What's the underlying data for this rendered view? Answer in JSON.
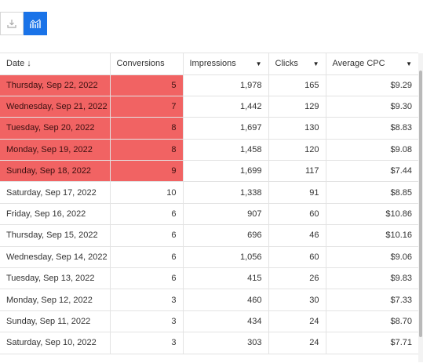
{
  "toolbar": {
    "buttons": [
      {
        "icon": "download-icon",
        "active": false
      },
      {
        "icon": "chart-icon",
        "active": true
      }
    ],
    "accent": "#1a73e8"
  },
  "table": {
    "highlight_color": "#f16363",
    "columns": [
      {
        "label": "Date",
        "sort": "descending",
        "icon": "sort-down-arrow-icon"
      },
      {
        "label": "Conversions"
      },
      {
        "label": "Impressions",
        "icon": "caret-down-icon"
      },
      {
        "label": "Clicks",
        "icon": "caret-down-icon"
      },
      {
        "label": "Average CPC",
        "icon": "caret-down-icon"
      }
    ],
    "caret_glyph": "▼",
    "sort_glyph": "↓",
    "rows": [
      {
        "date": "Thursday, Sep 22, 2022",
        "conversions": "5",
        "impressions": "1,978",
        "clicks": "165",
        "cpc": "$9.29",
        "highlighted": true
      },
      {
        "date": "Wednesday, Sep 21, 2022",
        "conversions": "7",
        "impressions": "1,442",
        "clicks": "129",
        "cpc": "$9.30",
        "highlighted": true
      },
      {
        "date": "Tuesday, Sep 20, 2022",
        "conversions": "8",
        "impressions": "1,697",
        "clicks": "130",
        "cpc": "$8.83",
        "highlighted": true
      },
      {
        "date": "Monday, Sep 19, 2022",
        "conversions": "8",
        "impressions": "1,458",
        "clicks": "120",
        "cpc": "$9.08",
        "highlighted": true
      },
      {
        "date": "Sunday, Sep 18, 2022",
        "conversions": "9",
        "impressions": "1,699",
        "clicks": "117",
        "cpc": "$7.44",
        "highlighted": true
      },
      {
        "date": "Saturday, Sep 17, 2022",
        "conversions": "10",
        "impressions": "1,338",
        "clicks": "91",
        "cpc": "$8.85",
        "highlighted": false
      },
      {
        "date": "Friday, Sep 16, 2022",
        "conversions": "6",
        "impressions": "907",
        "clicks": "60",
        "cpc": "$10.86",
        "highlighted": false
      },
      {
        "date": "Thursday, Sep 15, 2022",
        "conversions": "6",
        "impressions": "696",
        "clicks": "46",
        "cpc": "$10.16",
        "highlighted": false
      },
      {
        "date": "Wednesday, Sep 14, 2022",
        "conversions": "6",
        "impressions": "1,056",
        "clicks": "60",
        "cpc": "$9.06",
        "highlighted": false
      },
      {
        "date": "Tuesday, Sep 13, 2022",
        "conversions": "6",
        "impressions": "415",
        "clicks": "26",
        "cpc": "$9.83",
        "highlighted": false
      },
      {
        "date": "Monday, Sep 12, 2022",
        "conversions": "3",
        "impressions": "460",
        "clicks": "30",
        "cpc": "$7.33",
        "highlighted": false
      },
      {
        "date": "Sunday, Sep 11, 2022",
        "conversions": "3",
        "impressions": "434",
        "clicks": "24",
        "cpc": "$8.70",
        "highlighted": false
      },
      {
        "date": "Saturday, Sep 10, 2022",
        "conversions": "3",
        "impressions": "303",
        "clicks": "24",
        "cpc": "$7.71",
        "highlighted": false
      }
    ]
  }
}
